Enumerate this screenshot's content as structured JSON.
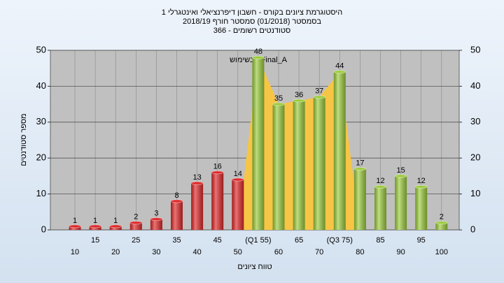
{
  "chart_data": {
    "type": "bar",
    "title": "היסטוגרמת ציונים בקורס - חשבון דיפרנציאלי ואינטגרלי 1",
    "subtitle": "בסמסטר (01/2018) סמסטר חורף 2018/19",
    "subtitle2": "סטודנטים רשומים - 366",
    "annotation": "בשימוש : Final_A",
    "x_label": "טווח ציונים",
    "y_label": "מספר סטודנטים",
    "categories": [
      "10",
      "15",
      "20",
      "25",
      "30",
      "35",
      "40",
      "45",
      "50",
      "(Q1 55)",
      "60",
      "65",
      "70",
      "(Q3 75)",
      "80",
      "85",
      "90",
      "95",
      "100"
    ],
    "values": [
      1,
      1,
      1,
      2,
      3,
      8,
      13,
      16,
      14,
      48,
      35,
      36,
      37,
      44,
      17,
      12,
      15,
      12,
      2
    ],
    "colors": [
      "#e02828",
      "#e02828",
      "#e02828",
      "#e02828",
      "#e02828",
      "#e02828",
      "#e02828",
      "#e02828",
      "#e02828",
      "#9ccc3c",
      "#9ccc3c",
      "#9ccc3c",
      "#9ccc3c",
      "#9ccc3c",
      "#9ccc3c",
      "#9ccc3c",
      "#9ccc3c",
      "#9ccc3c",
      "#9ccc3c"
    ],
    "quartile_color": "#f7c545",
    "ylim": [
      0,
      50
    ],
    "yticks": [
      0,
      10,
      20,
      30,
      40,
      50
    ],
    "y2lim": [
      0,
      50
    ],
    "y2ticks": [
      0,
      10,
      20,
      30,
      40,
      50
    ],
    "grid": true
  }
}
